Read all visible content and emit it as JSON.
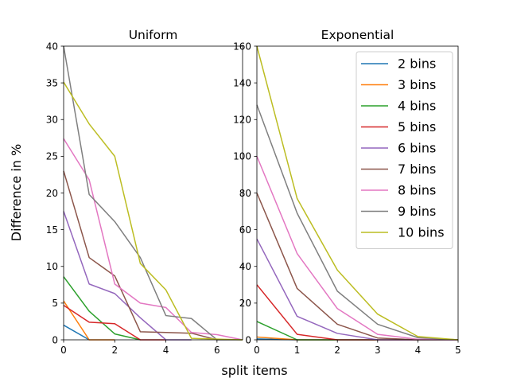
{
  "figure": {
    "ylabel": "Difference in %",
    "xlabel": "split items"
  },
  "chart_data": [
    {
      "type": "line",
      "title": "Uniform",
      "xlabel": "split items",
      "ylabel": "Difference in %",
      "xlim": [
        0,
        7
      ],
      "ylim": [
        0,
        40
      ],
      "xticks": [
        0,
        2,
        4,
        6
      ],
      "yticks": [
        0,
        5,
        10,
        15,
        20,
        25,
        30,
        35,
        40
      ],
      "grid": false,
      "series": [
        {
          "name": "2 bins",
          "color": "#1f77b4",
          "x": [
            0,
            1
          ],
          "y": [
            2.0,
            0.0
          ]
        },
        {
          "name": "3 bins",
          "color": "#ff7f0e",
          "x": [
            0,
            1,
            2
          ],
          "y": [
            5.3,
            0.0,
            0.0
          ]
        },
        {
          "name": "4 bins",
          "color": "#2ca02c",
          "x": [
            0,
            1,
            2,
            3
          ],
          "y": [
            8.6,
            3.9,
            0.8,
            0.0
          ]
        },
        {
          "name": "5 bins",
          "color": "#d62728",
          "x": [
            0,
            1,
            2,
            3,
            4
          ],
          "y": [
            4.7,
            2.4,
            2.2,
            0.0,
            0.0
          ]
        },
        {
          "name": "6 bins",
          "color": "#9467bd",
          "x": [
            0,
            1,
            2,
            3,
            4,
            5
          ],
          "y": [
            17.5,
            7.6,
            6.3,
            3.0,
            0.0,
            0.0
          ]
        },
        {
          "name": "7 bins",
          "color": "#8c564b",
          "x": [
            0,
            1,
            2,
            3,
            4,
            5,
            6
          ],
          "y": [
            23.0,
            11.2,
            8.7,
            1.1,
            1.0,
            0.9,
            0.0
          ]
        },
        {
          "name": "8 bins",
          "color": "#e377c2",
          "x": [
            0,
            1,
            2,
            3,
            4,
            5,
            6,
            7
          ],
          "y": [
            27.4,
            21.8,
            7.6,
            5.0,
            4.4,
            1.0,
            0.7,
            0.0
          ]
        },
        {
          "name": "9 bins",
          "color": "#7f7f7f",
          "x": [
            0,
            1,
            2,
            3,
            4,
            5,
            6,
            7
          ],
          "y": [
            40.0,
            19.8,
            16.1,
            11.2,
            3.3,
            2.9,
            0.0,
            0.0
          ]
        },
        {
          "name": "10 bins",
          "color": "#bcbd22",
          "x": [
            0,
            1,
            2,
            3,
            4,
            5,
            6,
            7
          ],
          "y": [
            35.1,
            29.4,
            25.0,
            10.4,
            6.8,
            0.2,
            0.1,
            0.0
          ]
        }
      ]
    },
    {
      "type": "line",
      "title": "Exponential",
      "xlabel": "split items",
      "ylabel": "",
      "xlim": [
        0,
        5
      ],
      "ylim": [
        0,
        160
      ],
      "xticks": [
        0,
        1,
        2,
        3,
        4,
        5
      ],
      "yticks": [
        0,
        20,
        40,
        60,
        80,
        100,
        120,
        140,
        160
      ],
      "grid": false,
      "legend": "upper right",
      "series": [
        {
          "name": "2 bins",
          "color": "#1f77b4",
          "x": [
            0,
            1
          ],
          "y": [
            0.5,
            0.0
          ]
        },
        {
          "name": "3 bins",
          "color": "#ff7f0e",
          "x": [
            0,
            1,
            2
          ],
          "y": [
            1.5,
            0.0,
            0.0
          ]
        },
        {
          "name": "4 bins",
          "color": "#2ca02c",
          "x": [
            0,
            1,
            2,
            3
          ],
          "y": [
            10.0,
            0.0,
            0.0,
            0.0
          ]
        },
        {
          "name": "5 bins",
          "color": "#d62728",
          "x": [
            0,
            1,
            2,
            3,
            4
          ],
          "y": [
            30.0,
            3.0,
            0.0,
            0.0,
            0.0
          ]
        },
        {
          "name": "6 bins",
          "color": "#9467bd",
          "x": [
            0,
            1,
            2,
            3,
            4,
            5
          ],
          "y": [
            55.0,
            12.8,
            3.5,
            0.0,
            0.0,
            0.0
          ]
        },
        {
          "name": "7 bins",
          "color": "#8c564b",
          "x": [
            0,
            1,
            2,
            3,
            4,
            5
          ],
          "y": [
            80.0,
            28.0,
            8.5,
            1.0,
            0.0,
            0.0
          ]
        },
        {
          "name": "8 bins",
          "color": "#e377c2",
          "x": [
            0,
            1,
            2,
            3,
            4,
            5
          ],
          "y": [
            100.0,
            47.0,
            17.0,
            3.0,
            0.3,
            0.0
          ]
        },
        {
          "name": "9 bins",
          "color": "#7f7f7f",
          "x": [
            0,
            1,
            2,
            3,
            4,
            5
          ],
          "y": [
            128.0,
            69.0,
            26.5,
            8.5,
            1.2,
            0.0
          ]
        },
        {
          "name": "10 bins",
          "color": "#bcbd22",
          "x": [
            0,
            1,
            2,
            3,
            4,
            5
          ],
          "y": [
            160.0,
            77.0,
            38.0,
            14.0,
            1.8,
            0.0
          ]
        }
      ]
    }
  ]
}
